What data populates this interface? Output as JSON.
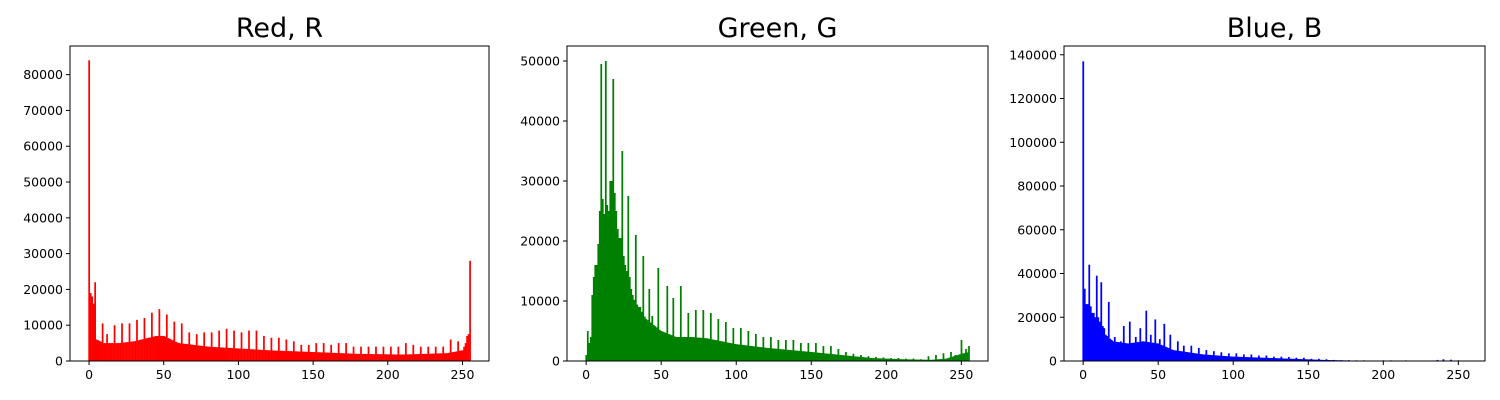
{
  "chart_data": [
    {
      "type": "bar",
      "title": "Red, R",
      "color": "#ff0000",
      "xlim": [
        -12.75,
        267.75
      ],
      "ylim": [
        0,
        88000
      ],
      "xticks": [
        0,
        50,
        100,
        150,
        200,
        250
      ],
      "yticks": [
        0,
        10000,
        20000,
        30000,
        40000,
        50000,
        60000,
        70000,
        80000
      ],
      "grid": false,
      "spikes": [
        [
          0,
          84000
        ],
        [
          1,
          19000
        ],
        [
          2,
          18000
        ],
        [
          3,
          16000
        ],
        [
          4,
          22000
        ],
        [
          5,
          6000
        ],
        [
          9,
          10500
        ],
        [
          12,
          7500
        ],
        [
          17,
          10000
        ],
        [
          22,
          10500
        ],
        [
          27,
          10500
        ],
        [
          32,
          11500
        ],
        [
          37,
          12000
        ],
        [
          42,
          13500
        ],
        [
          47,
          14500
        ],
        [
          52,
          13000
        ],
        [
          57,
          11000
        ],
        [
          62,
          10500
        ],
        [
          67,
          8000
        ],
        [
          72,
          7500
        ],
        [
          77,
          8000
        ],
        [
          82,
          8000
        ],
        [
          87,
          8500
        ],
        [
          92,
          9000
        ],
        [
          97,
          8500
        ],
        [
          102,
          8000
        ],
        [
          107,
          8500
        ],
        [
          112,
          8500
        ],
        [
          117,
          7000
        ],
        [
          122,
          6500
        ],
        [
          127,
          6500
        ],
        [
          132,
          6000
        ],
        [
          137,
          5500
        ],
        [
          142,
          4500
        ],
        [
          147,
          4500
        ],
        [
          152,
          5000
        ],
        [
          157,
          5000
        ],
        [
          162,
          4500
        ],
        [
          167,
          5000
        ],
        [
          172,
          5000
        ],
        [
          177,
          4000
        ],
        [
          182,
          4000
        ],
        [
          187,
          4000
        ],
        [
          192,
          4000
        ],
        [
          197,
          4000
        ],
        [
          202,
          4000
        ],
        [
          207,
          4000
        ],
        [
          212,
          5000
        ],
        [
          217,
          4500
        ],
        [
          222,
          4000
        ],
        [
          227,
          4000
        ],
        [
          232,
          4000
        ],
        [
          237,
          4000
        ],
        [
          242,
          6000
        ],
        [
          247,
          5500
        ],
        [
          251,
          4000
        ],
        [
          252,
          5000
        ],
        [
          253,
          7000
        ],
        [
          254,
          7500
        ],
        [
          255,
          28000
        ]
      ],
      "envelope": [
        [
          5,
          6000
        ],
        [
          10,
          5000
        ],
        [
          20,
          5000
        ],
        [
          30,
          5500
        ],
        [
          45,
          7000
        ],
        [
          50,
          7000
        ],
        [
          60,
          5000
        ],
        [
          80,
          4000
        ],
        [
          100,
          3500
        ],
        [
          120,
          3000
        ],
        [
          150,
          2500
        ],
        [
          180,
          2000
        ],
        [
          210,
          1800
        ],
        [
          240,
          2200
        ],
        [
          250,
          3000
        ]
      ]
    },
    {
      "type": "bar",
      "title": "Green, G",
      "color": "#008000",
      "xlim": [
        -12.75,
        267.75
      ],
      "ylim": [
        0,
        52500
      ],
      "xticks": [
        0,
        50,
        100,
        150,
        200,
        250
      ],
      "yticks": [
        0,
        10000,
        20000,
        30000,
        40000,
        50000
      ],
      "grid": false,
      "spikes": [
        [
          1,
          5000
        ],
        [
          2,
          3000
        ],
        [
          3,
          4000
        ],
        [
          4,
          11000
        ],
        [
          5,
          14000
        ],
        [
          6,
          16000
        ],
        [
          7,
          16000
        ],
        [
          8,
          19500
        ],
        [
          9,
          25000
        ],
        [
          10,
          49500
        ],
        [
          11,
          27000
        ],
        [
          12,
          24500
        ],
        [
          13,
          50000
        ],
        [
          14,
          26000
        ],
        [
          15,
          25000
        ],
        [
          16,
          30000
        ],
        [
          17,
          30000
        ],
        [
          18,
          47000
        ],
        [
          19,
          28000
        ],
        [
          20,
          25000
        ],
        [
          21,
          22000
        ],
        [
          22,
          20500
        ],
        [
          23,
          20500
        ],
        [
          24,
          35000
        ],
        [
          25,
          17500
        ],
        [
          26,
          16000
        ],
        [
          27,
          15000
        ],
        [
          28,
          27500
        ],
        [
          29,
          14000
        ],
        [
          30,
          12000
        ],
        [
          31,
          11000
        ],
        [
          33,
          21000
        ],
        [
          36,
          9000
        ],
        [
          38,
          17500
        ],
        [
          42,
          12000
        ],
        [
          44,
          7500
        ],
        [
          48,
          15500
        ],
        [
          54,
          12500
        ],
        [
          58,
          10500
        ],
        [
          63,
          12500
        ],
        [
          68,
          8000
        ],
        [
          73,
          8500
        ],
        [
          78,
          8500
        ],
        [
          83,
          8000
        ],
        [
          88,
          7000
        ],
        [
          93,
          6500
        ],
        [
          98,
          5500
        ],
        [
          103,
          5500
        ],
        [
          108,
          5000
        ],
        [
          113,
          4500
        ],
        [
          118,
          4000
        ],
        [
          123,
          4000
        ],
        [
          128,
          3500
        ],
        [
          133,
          3500
        ],
        [
          138,
          3500
        ],
        [
          143,
          3000
        ],
        [
          148,
          3000
        ],
        [
          153,
          3000
        ],
        [
          158,
          2500
        ],
        [
          163,
          2500
        ],
        [
          168,
          2000
        ],
        [
          173,
          1500
        ],
        [
          178,
          1200
        ],
        [
          183,
          1000
        ],
        [
          188,
          800
        ],
        [
          193,
          700
        ],
        [
          198,
          600
        ],
        [
          203,
          500
        ],
        [
          208,
          500
        ],
        [
          213,
          400
        ],
        [
          218,
          400
        ],
        [
          223,
          300
        ],
        [
          228,
          800
        ],
        [
          233,
          1000
        ],
        [
          238,
          1300
        ],
        [
          243,
          1500
        ],
        [
          246,
          1000
        ],
        [
          250,
          3500
        ],
        [
          253,
          2000
        ],
        [
          255,
          2500
        ]
      ],
      "envelope": [
        [
          0,
          1000
        ],
        [
          5,
          10000
        ],
        [
          10,
          20000
        ],
        [
          15,
          25000
        ],
        [
          20,
          18000
        ],
        [
          25,
          14000
        ],
        [
          30,
          11000
        ],
        [
          40,
          7000
        ],
        [
          50,
          5000
        ],
        [
          60,
          4000
        ],
        [
          70,
          4000
        ],
        [
          80,
          3800
        ],
        [
          100,
          2800
        ],
        [
          120,
          2200
        ],
        [
          150,
          1500
        ],
        [
          170,
          1000
        ],
        [
          190,
          500
        ],
        [
          210,
          300
        ],
        [
          230,
          200
        ],
        [
          240,
          400
        ],
        [
          250,
          1200
        ],
        [
          255,
          1500
        ]
      ]
    },
    {
      "type": "bar",
      "title": "Blue, B",
      "color": "#0000ff",
      "xlim": [
        -12.75,
        267.75
      ],
      "ylim": [
        0,
        144000
      ],
      "xticks": [
        0,
        50,
        100,
        150,
        200,
        250
      ],
      "yticks": [
        0,
        20000,
        40000,
        60000,
        80000,
        100000,
        120000,
        140000
      ],
      "grid": false,
      "spikes": [
        [
          0,
          137000
        ],
        [
          1,
          33000
        ],
        [
          2,
          26000
        ],
        [
          3,
          26000
        ],
        [
          4,
          44000
        ],
        [
          5,
          25000
        ],
        [
          6,
          22000
        ],
        [
          7,
          22000
        ],
        [
          8,
          20000
        ],
        [
          9,
          39000
        ],
        [
          10,
          20000
        ],
        [
          11,
          18000
        ],
        [
          12,
          36000
        ],
        [
          13,
          16000
        ],
        [
          14,
          15000
        ],
        [
          17,
          27000
        ],
        [
          21,
          11000
        ],
        [
          25,
          9000
        ],
        [
          27,
          16000
        ],
        [
          31,
          18000
        ],
        [
          35,
          11000
        ],
        [
          38,
          15000
        ],
        [
          42,
          23000
        ],
        [
          45,
          12000
        ],
        [
          48,
          19000
        ],
        [
          51,
          10000
        ],
        [
          54,
          17000
        ],
        [
          58,
          12000
        ],
        [
          63,
          9000
        ],
        [
          67,
          7000
        ],
        [
          72,
          7000
        ],
        [
          77,
          6000
        ],
        [
          82,
          5000
        ],
        [
          87,
          4500
        ],
        [
          92,
          4000
        ],
        [
          97,
          3500
        ],
        [
          102,
          3500
        ],
        [
          107,
          3000
        ],
        [
          112,
          3000
        ],
        [
          117,
          2500
        ],
        [
          122,
          2500
        ],
        [
          127,
          2000
        ],
        [
          132,
          2000
        ],
        [
          137,
          1800
        ],
        [
          142,
          1500
        ],
        [
          147,
          1500
        ],
        [
          152,
          1000
        ],
        [
          157,
          1000
        ],
        [
          162,
          800
        ],
        [
          167,
          500
        ],
        [
          172,
          400
        ],
        [
          177,
          400
        ],
        [
          182,
          300
        ],
        [
          187,
          300
        ],
        [
          200,
          300
        ],
        [
          205,
          300
        ],
        [
          215,
          300
        ],
        [
          236,
          500
        ],
        [
          240,
          800
        ],
        [
          245,
          600
        ],
        [
          250,
          300
        ]
      ],
      "envelope": [
        [
          1,
          25000
        ],
        [
          5,
          20000
        ],
        [
          10,
          15000
        ],
        [
          20,
          9000
        ],
        [
          30,
          8000
        ],
        [
          40,
          9000
        ],
        [
          50,
          8000
        ],
        [
          60,
          5000
        ],
        [
          80,
          3000
        ],
        [
          100,
          2000
        ],
        [
          120,
          1500
        ],
        [
          140,
          1000
        ],
        [
          160,
          500
        ],
        [
          180,
          200
        ],
        [
          200,
          100
        ],
        [
          230,
          100
        ],
        [
          255,
          100
        ]
      ]
    }
  ]
}
